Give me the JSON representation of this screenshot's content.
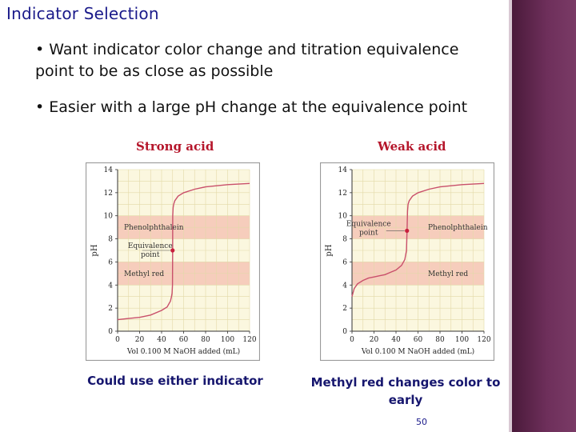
{
  "slide": {
    "title": "Indicator Selection",
    "bullets": [
      "• Want indicator color change and titration equivalence point to be as close as possible",
      "• Easier with a large pH change at the equivalence point"
    ],
    "page_number": "50"
  },
  "colors": {
    "title": "#1a1a8a",
    "chart_title": "#b5162b",
    "caption": "#16166e",
    "curve": "#c9506b",
    "band": "#f4c6b6",
    "plot_bg": "#fbf7df",
    "sidebar": "#6e2f5b"
  },
  "chart_data": [
    {
      "type": "line",
      "title": "Strong acid",
      "xlabel": "Vol 0.100 M NaOH added (mL)",
      "ylabel": "pH",
      "xlim": [
        0,
        120
      ],
      "ylim": [
        0,
        14
      ],
      "x_ticks": [
        0,
        20,
        40,
        60,
        80,
        100,
        120
      ],
      "y_ticks": [
        0,
        2,
        4,
        6,
        8,
        10,
        12,
        14
      ],
      "grid": true,
      "bands": [
        {
          "label": "Phenolphthalein",
          "range": [
            8,
            10
          ]
        },
        {
          "label": "Methyl red",
          "range": [
            4,
            6
          ]
        }
      ],
      "annotation": {
        "label": "Equivalence point",
        "x": 50,
        "y": 7
      },
      "series": [
        {
          "x": [
            0,
            10,
            20,
            30,
            40,
            45,
            48,
            49,
            49.5,
            49.9,
            50,
            50.1,
            50.5,
            51,
            52,
            55,
            60,
            70,
            80,
            100,
            120
          ],
          "y": [
            1.0,
            1.1,
            1.2,
            1.4,
            1.8,
            2.1,
            2.6,
            3.0,
            3.3,
            4.0,
            7.0,
            10.0,
            10.7,
            11.0,
            11.3,
            11.7,
            12.0,
            12.3,
            12.5,
            12.7,
            12.8
          ]
        }
      ],
      "caption": "Could use either indicator"
    },
    {
      "type": "line",
      "title": "Weak acid",
      "xlabel": "Vol 0.100 M NaOH added (mL)",
      "ylabel": "pH",
      "xlim": [
        0,
        120
      ],
      "ylim": [
        0,
        14
      ],
      "x_ticks": [
        0,
        20,
        40,
        60,
        80,
        100,
        120
      ],
      "y_ticks": [
        0,
        2,
        4,
        6,
        8,
        10,
        12,
        14
      ],
      "grid": true,
      "bands": [
        {
          "label": "Phenolphthalein",
          "range": [
            8,
            10
          ]
        },
        {
          "label": "Methyl red",
          "range": [
            4,
            6
          ]
        }
      ],
      "annotation": {
        "label": "Equivalence point",
        "x": 50,
        "y": 8.7
      },
      "series": [
        {
          "x": [
            0,
            2,
            5,
            10,
            15,
            20,
            25,
            30,
            35,
            40,
            45,
            48,
            49.5,
            50,
            50.5,
            51,
            52,
            55,
            60,
            70,
            80,
            100,
            120
          ],
          "y": [
            3.0,
            3.7,
            4.1,
            4.4,
            4.6,
            4.7,
            4.8,
            4.9,
            5.1,
            5.3,
            5.7,
            6.2,
            7.0,
            8.7,
            10.4,
            11.0,
            11.3,
            11.7,
            12.0,
            12.3,
            12.5,
            12.7,
            12.8
          ]
        }
      ],
      "caption": "Methyl red changes color to early"
    }
  ]
}
